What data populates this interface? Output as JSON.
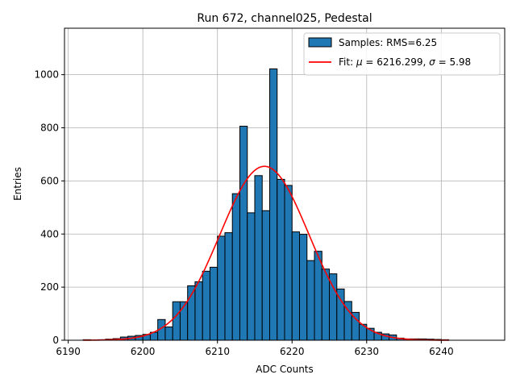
{
  "chart_data": {
    "type": "bar",
    "title": "Run 672, channel025, Pedestal",
    "xlabel": "ADC Counts",
    "ylabel": "Entries",
    "xlim": [
      6189.5,
      6248.5
    ],
    "ylim": [
      0,
      1175
    ],
    "xticks": [
      6190,
      6200,
      6210,
      6220,
      6230,
      6240
    ],
    "yticks": [
      0,
      200,
      400,
      600,
      800,
      1000
    ],
    "grid": true,
    "legend_position": "top-right",
    "histogram": {
      "name": "Samples: RMS=6.25",
      "color": "#1f77b4",
      "edge_color": "#000000",
      "bin_edges": [
        6192,
        6193,
        6194,
        6195,
        6196,
        6197,
        6198,
        6199,
        6200,
        6201,
        6202,
        6203,
        6204,
        6205,
        6206,
        6207,
        6208,
        6209,
        6210,
        6211,
        6212,
        6213,
        6214,
        6215,
        6216,
        6217,
        6218,
        6219,
        6220,
        6221,
        6222,
        6223,
        6224,
        6225,
        6226,
        6227,
        6228,
        6229,
        6230,
        6231,
        6232,
        6233,
        6234,
        6235,
        6236,
        6237,
        6238,
        6239,
        6240,
        6241
      ],
      "counts": [
        2,
        1,
        2,
        4,
        6,
        12,
        15,
        18,
        22,
        30,
        78,
        50,
        145,
        145,
        205,
        220,
        260,
        275,
        392,
        405,
        552,
        806,
        480,
        620,
        488,
        1022,
        606,
        583,
        408,
        399,
        300,
        335,
        268,
        250,
        193,
        146,
        105,
        60,
        45,
        30,
        24,
        20,
        8,
        5,
        5,
        5,
        4,
        3,
        2
      ]
    },
    "fit": {
      "name": "Fit: μ = 6216.299, σ = 5.98",
      "label_prefix": "Fit: ",
      "label_mu_sym": "μ",
      "label_mid": " = 6216.299, ",
      "label_sigma_sym": "σ",
      "label_suffix": " = 5.98",
      "color": "#ff0000",
      "mu": 6216.299,
      "sigma": 5.98,
      "amplitude": 655,
      "x_range": [
        6192,
        6241
      ]
    }
  }
}
